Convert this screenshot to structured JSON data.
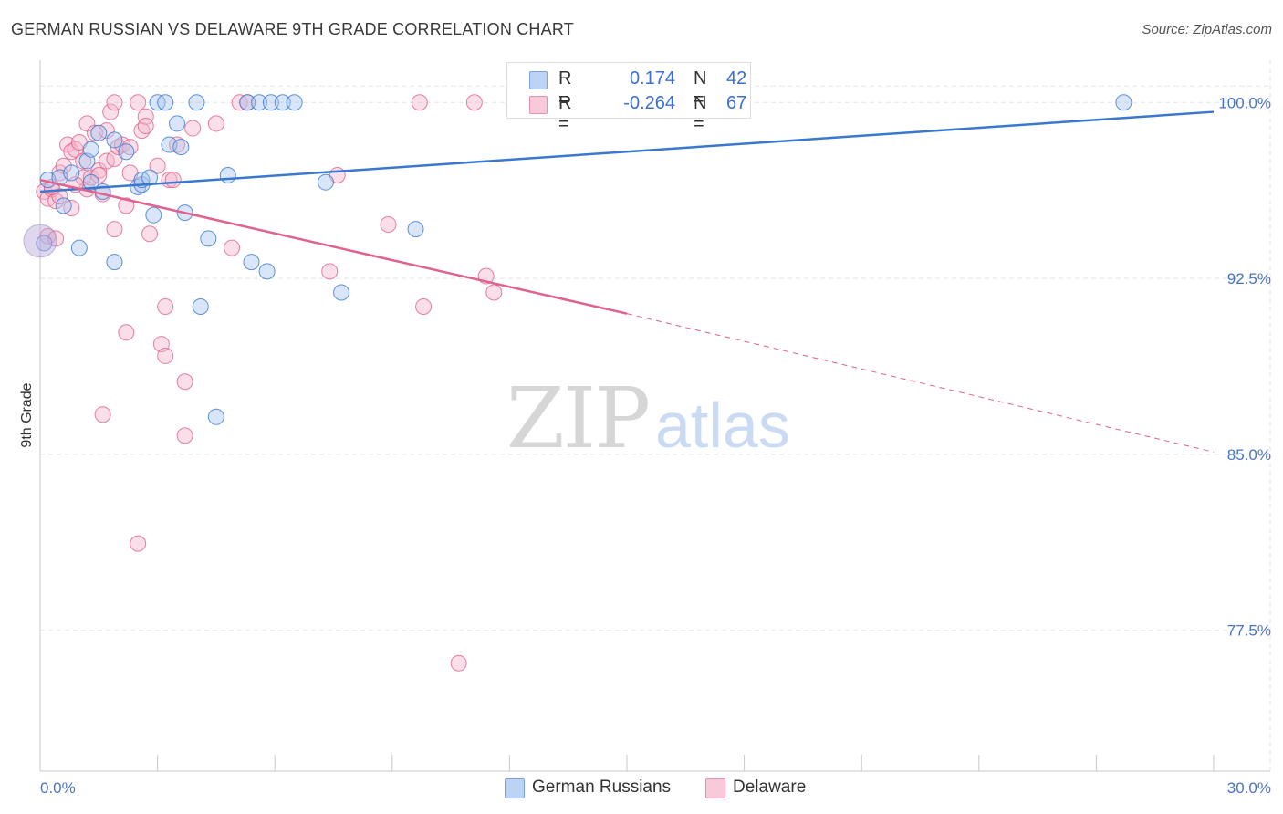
{
  "header": {
    "title": "GERMAN RUSSIAN VS DELAWARE 9TH GRADE CORRELATION CHART",
    "source": "Source: ZipAtlas.com"
  },
  "watermark": {
    "zip": "ZIP",
    "atlas": "atlas"
  },
  "colors": {
    "blue": "#3a78d0",
    "blue_fill": "#aac6f0",
    "pink": "#e0628d",
    "pink_fill": "#f5b6cb",
    "grid": "#dfe3e8",
    "tick_label": "#4a74c4"
  },
  "legend": {
    "r_label": "R =",
    "n_label": "N =",
    "blue": {
      "r": "0.174",
      "n": "42"
    },
    "pink": {
      "r": "-0.264",
      "n": "67"
    }
  },
  "chart_data": {
    "type": "scatter",
    "title": "GERMAN RUSSIAN VS DELAWARE 9TH GRADE CORRELATION CHART",
    "xlabel": "",
    "ylabel": "9th Grade",
    "xlim": [
      0,
      30
    ],
    "ylim": [
      71.5,
      101.8
    ],
    "x_tick_labels": [
      "0.0%",
      "30.0%"
    ],
    "y_ticks": [
      100.0,
      92.5,
      85.0,
      77.5
    ],
    "y_tick_labels": [
      "100.0%",
      "92.5%",
      "85.0%",
      "77.5%"
    ],
    "grid": true,
    "legend_position": "top-center",
    "series": [
      {
        "name": "German Russians",
        "color": "#3a78d0",
        "r": 0.174,
        "n": 42,
        "trend": {
          "x": [
            0,
            30
          ],
          "y": [
            96.2,
            99.6
          ],
          "dashed_from": null
        },
        "points": [
          [
            0.2,
            96.7
          ],
          [
            0.5,
            96.8
          ],
          [
            0.6,
            95.6
          ],
          [
            0.8,
            97.0
          ],
          [
            1.0,
            93.8
          ],
          [
            1.2,
            97.5
          ],
          [
            1.3,
            96.6
          ],
          [
            1.3,
            98.0
          ],
          [
            1.5,
            98.7
          ],
          [
            1.6,
            96.2
          ],
          [
            1.9,
            93.2
          ],
          [
            1.9,
            98.4
          ],
          [
            2.2,
            97.9
          ],
          [
            2.5,
            96.4
          ],
          [
            2.6,
            96.5
          ],
          [
            2.6,
            96.7
          ],
          [
            2.8,
            96.8
          ],
          [
            2.9,
            95.2
          ],
          [
            3.0,
            100.0
          ],
          [
            3.2,
            100.0
          ],
          [
            3.3,
            98.2
          ],
          [
            3.5,
            99.1
          ],
          [
            3.6,
            98.1
          ],
          [
            3.7,
            95.3
          ],
          [
            4.0,
            100.0
          ],
          [
            4.1,
            91.3
          ],
          [
            4.3,
            94.2
          ],
          [
            4.5,
            86.6
          ],
          [
            4.8,
            96.9
          ],
          [
            5.3,
            100.0
          ],
          [
            5.4,
            93.2
          ],
          [
            5.6,
            100.0
          ],
          [
            5.8,
            92.8
          ],
          [
            5.9,
            100.0
          ],
          [
            6.2,
            100.0
          ],
          [
            6.5,
            100.0
          ],
          [
            7.3,
            96.6
          ],
          [
            7.7,
            91.9
          ],
          [
            9.6,
            94.6
          ],
          [
            12.4,
            100.0
          ],
          [
            27.7,
            100.0
          ],
          [
            0.1,
            94.0
          ]
        ]
      },
      {
        "name": "Delaware",
        "color": "#e0628d",
        "r": -0.264,
        "n": 67,
        "trend": {
          "x": [
            0,
            15.0,
            30
          ],
          "y": [
            96.7,
            91.0,
            85.1
          ],
          "dashed_from": 15.0
        },
        "points": [
          [
            0.1,
            96.2
          ],
          [
            0.2,
            95.9
          ],
          [
            0.3,
            96.3
          ],
          [
            0.4,
            95.8
          ],
          [
            0.5,
            96.0
          ],
          [
            0.5,
            97.0
          ],
          [
            0.6,
            97.3
          ],
          [
            0.7,
            98.2
          ],
          [
            0.8,
            97.9
          ],
          [
            0.8,
            95.5
          ],
          [
            0.9,
            98.0
          ],
          [
            1.0,
            98.3
          ],
          [
            1.1,
            96.8
          ],
          [
            1.1,
            97.5
          ],
          [
            1.2,
            96.3
          ],
          [
            1.2,
            99.1
          ],
          [
            1.3,
            96.8
          ],
          [
            1.4,
            98.7
          ],
          [
            1.5,
            97.1
          ],
          [
            1.5,
            96.9
          ],
          [
            1.6,
            96.1
          ],
          [
            1.7,
            98.8
          ],
          [
            1.7,
            97.5
          ],
          [
            1.8,
            99.6
          ],
          [
            1.9,
            97.6
          ],
          [
            1.9,
            94.6
          ],
          [
            1.9,
            100.0
          ],
          [
            2.0,
            98.1
          ],
          [
            2.1,
            98.2
          ],
          [
            2.2,
            95.6
          ],
          [
            2.2,
            90.2
          ],
          [
            2.3,
            98.1
          ],
          [
            2.5,
            100.0
          ],
          [
            2.5,
            81.2
          ],
          [
            2.6,
            98.8
          ],
          [
            2.7,
            99.4
          ],
          [
            2.7,
            99.0
          ],
          [
            2.8,
            94.4
          ],
          [
            3.0,
            97.3
          ],
          [
            3.1,
            89.7
          ],
          [
            3.2,
            89.2
          ],
          [
            3.2,
            91.3
          ],
          [
            3.3,
            96.7
          ],
          [
            3.4,
            96.7
          ],
          [
            3.5,
            98.2
          ],
          [
            3.7,
            88.1
          ],
          [
            3.7,
            85.8
          ],
          [
            3.9,
            98.9
          ],
          [
            4.5,
            99.1
          ],
          [
            4.9,
            93.8
          ],
          [
            5.1,
            100.0
          ],
          [
            5.3,
            100.0
          ],
          [
            7.4,
            92.8
          ],
          [
            7.6,
            96.9
          ],
          [
            8.9,
            94.8
          ],
          [
            9.7,
            100.0
          ],
          [
            9.8,
            91.3
          ],
          [
            10.7,
            76.1
          ],
          [
            11.1,
            100.0
          ],
          [
            11.4,
            92.6
          ],
          [
            11.6,
            91.9
          ],
          [
            0.2,
            94.3
          ],
          [
            0.3,
            96.4
          ],
          [
            1.6,
            86.7
          ],
          [
            0.9,
            96.5
          ],
          [
            2.3,
            97.0
          ],
          [
            0.4,
            94.2
          ]
        ]
      }
    ]
  }
}
